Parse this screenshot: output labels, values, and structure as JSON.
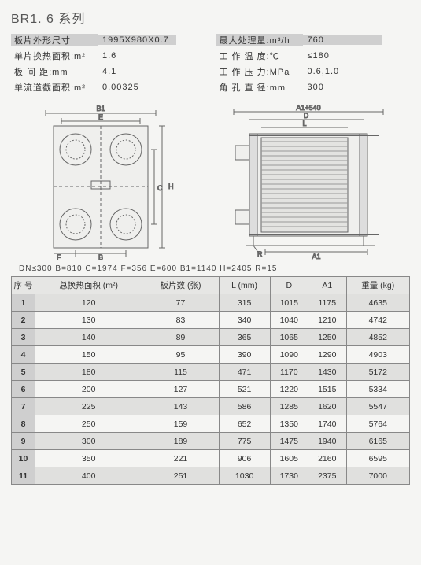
{
  "title": "BR1. 6 系列",
  "specs_left": [
    {
      "label": "板片外形尺寸",
      "value": "1995X980X0.7",
      "header": true
    },
    {
      "label": "单片换热面积:m²",
      "value": "1.6"
    },
    {
      "label": "板 间 距:mm",
      "value": "4.1"
    },
    {
      "label": "单流道截面积:m²",
      "value": "0.00325"
    }
  ],
  "specs_right": [
    {
      "label": "最大处理量:m³/h",
      "value": "760",
      "header": true
    },
    {
      "label": "工 作 温 度:℃",
      "value": "≤180"
    },
    {
      "label": "工 作 压 力:MPa",
      "value": "0.6,1.0"
    },
    {
      "label": "角 孔 直 径:mm",
      "value": "300"
    }
  ],
  "dim_line": "DN≤300   B=810   C=1974   F=356   E=600   B1=1140   H=2405   R=15",
  "diagram_labels": {
    "left_top": [
      "B1",
      "E"
    ],
    "left_side": [
      "H",
      "C"
    ],
    "left_bottom": [
      "F",
      "B"
    ],
    "right_top": [
      "A1+540",
      "D",
      "L"
    ],
    "right_bottom": [
      "R",
      "A1"
    ]
  },
  "table": {
    "columns": [
      "序 号",
      "总换热面积 (m²)",
      "板片数 (张)",
      "L (mm)",
      "D",
      "A1",
      "重量 (kg)"
    ],
    "rows": [
      [
        "1",
        "120",
        "77",
        "315",
        "1015",
        "1175",
        "4635"
      ],
      [
        "2",
        "130",
        "83",
        "340",
        "1040",
        "1210",
        "4742"
      ],
      [
        "3",
        "140",
        "89",
        "365",
        "1065",
        "1250",
        "4852"
      ],
      [
        "4",
        "150",
        "95",
        "390",
        "1090",
        "1290",
        "4903"
      ],
      [
        "5",
        "180",
        "115",
        "471",
        "1170",
        "1430",
        "5172"
      ],
      [
        "6",
        "200",
        "127",
        "521",
        "1220",
        "1515",
        "5334"
      ],
      [
        "7",
        "225",
        "143",
        "586",
        "1285",
        "1620",
        "5547"
      ],
      [
        "8",
        "250",
        "159",
        "652",
        "1350",
        "1740",
        "5764"
      ],
      [
        "9",
        "300",
        "189",
        "775",
        "1475",
        "1940",
        "6165"
      ],
      [
        "10",
        "350",
        "221",
        "906",
        "1605",
        "2160",
        "6595"
      ],
      [
        "11",
        "400",
        "251",
        "1030",
        "1730",
        "2375",
        "7000"
      ]
    ]
  },
  "colors": {
    "bg": "#f5f5f3",
    "header_grey": "#cfcfcf",
    "row_odd": "#e0e0de",
    "border": "#888888",
    "text": "#333333"
  }
}
